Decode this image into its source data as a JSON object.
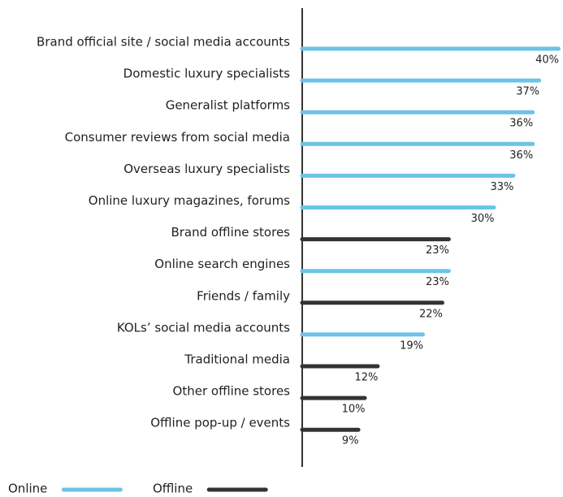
{
  "chart_data": {
    "type": "bar",
    "orientation": "horizontal",
    "categories": [
      "Brand official site / social media accounts",
      "Domestic luxury specialists",
      "Generalist platforms",
      "Consumer reviews from social media",
      "Overseas luxury specialists",
      "Online luxury magazines, forums",
      "Brand offline stores",
      "Online search engines",
      "Friends / family",
      "KOLs’ social media accounts",
      "Traditional media",
      "Other offline stores",
      "Offline pop-up / events"
    ],
    "series": [
      {
        "name": "Online",
        "color": "#6cc3e6",
        "values": [
          40,
          37,
          36,
          36,
          33,
          30,
          null,
          23,
          null,
          19,
          null,
          null,
          null
        ],
        "value_labels": [
          "40%",
          "37%",
          "36%",
          "36%",
          "33%",
          "30%",
          null,
          "23%",
          null,
          "19%",
          null,
          null,
          null
        ]
      },
      {
        "name": "Offline",
        "color": "#333333",
        "values": [
          null,
          null,
          null,
          null,
          null,
          null,
          23,
          null,
          22,
          null,
          12,
          10,
          9
        ],
        "value_labels": [
          null,
          null,
          null,
          null,
          null,
          null,
          "23%",
          null,
          "22%",
          null,
          "12%",
          "10%",
          "9%"
        ]
      }
    ],
    "legend": "bottom-left"
  }
}
